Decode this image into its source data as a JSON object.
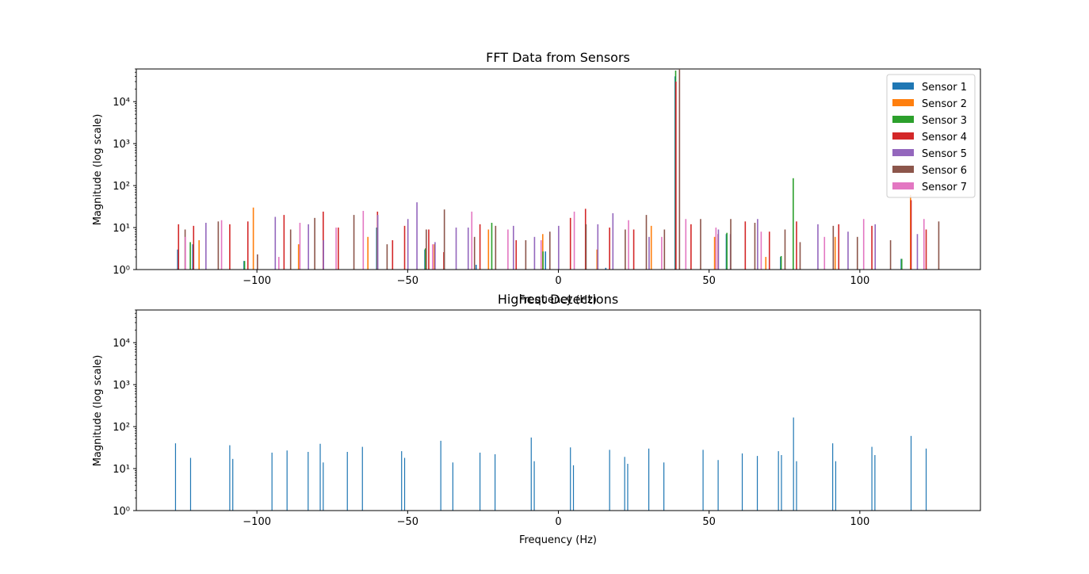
{
  "chart_data": [
    {
      "type": "bar",
      "title": "FFT Data from Sensors",
      "xlabel": "Frequency (Hz)",
      "ylabel": "Magnitude (log scale)",
      "yscale": "log",
      "xlim": [
        -140,
        140
      ],
      "ylim": [
        1,
        60000
      ],
      "x_ticks": [
        -100,
        -50,
        0,
        50,
        100
      ],
      "x_tick_labels": [
        "−100",
        "−50",
        "0",
        "50",
        "100"
      ],
      "y_ticks": [
        1,
        10,
        100,
        1000,
        10000
      ],
      "y_tick_labels": [
        "10⁰",
        "10¹",
        "10²",
        "10³",
        "10⁴"
      ],
      "grid": false,
      "legend_position": "upper right",
      "series": [
        {
          "name": "Sensor 1",
          "color": "#1f77b4",
          "x": [
            -126,
            -121,
            -104,
            -60,
            -44,
            -27,
            -4,
            16,
            39,
            56,
            74,
            114
          ],
          "values": [
            3,
            4,
            1.6,
            10,
            3,
            1.3,
            2.7,
            1.1,
            40000,
            7,
            2,
            1.8
          ]
        },
        {
          "name": "Sensor 2",
          "color": "#ff7f0e",
          "x": [
            -119,
            -101,
            -86,
            -63,
            -41,
            -23,
            -5,
            13,
            31,
            52,
            69,
            92,
            117
          ],
          "values": [
            5,
            30,
            4,
            6,
            4,
            9,
            7,
            3,
            11,
            6,
            2,
            6,
            60
          ]
        },
        {
          "name": "Sensor 3",
          "color": "#2ca02c",
          "x": [
            -122,
            -104,
            -60,
            -44,
            -22,
            -5,
            39,
            56,
            74,
            78,
            114
          ],
          "values": [
            4.5,
            1.6,
            10,
            3.2,
            13,
            2.7,
            55000,
            7.5,
            2.1,
            150,
            1.8
          ]
        },
        {
          "name": "Sensor 4",
          "color": "#d32728",
          "x": [
            -126,
            -121,
            -109,
            -103,
            -91,
            -78,
            -73,
            -60,
            -55,
            -51,
            -43,
            -38,
            -26,
            -14,
            4,
            9,
            17,
            25,
            39,
            44,
            53,
            62,
            70,
            79,
            93,
            104,
            117,
            122
          ],
          "values": [
            12,
            11,
            12,
            14,
            20,
            24,
            10,
            24,
            5,
            11,
            9,
            2.6,
            12,
            5,
            17,
            28,
            10,
            9,
            30000,
            12,
            7,
            14,
            8,
            14,
            12,
            11,
            45,
            9
          ]
        },
        {
          "name": "Sensor 5",
          "color": "#9467bd",
          "x": [
            -117,
            -94,
            -83,
            -78,
            -60,
            -50,
            -47,
            -41,
            -34,
            -30,
            -15,
            -8,
            0,
            13,
            18,
            30,
            53,
            57,
            66,
            86,
            96,
            105,
            119
          ],
          "values": [
            13,
            18,
            12,
            5,
            20,
            16,
            40,
            4.5,
            10,
            10,
            11,
            6,
            11,
            12,
            22,
            6,
            9,
            7,
            16,
            12,
            8,
            12,
            7
          ]
        },
        {
          "name": "Sensor 6",
          "color": "#8c564b",
          "x": [
            -124,
            -113,
            -100,
            -89,
            -81,
            -68,
            -57,
            -44,
            -38,
            -28,
            -21,
            -11,
            -3,
            9,
            22,
            29,
            35,
            40,
            47,
            57,
            65,
            75,
            80,
            91,
            99,
            110,
            126
          ],
          "values": [
            9,
            14,
            2.3,
            9,
            17,
            20,
            4,
            9,
            27,
            6,
            11,
            5,
            8,
            12,
            9,
            20,
            9,
            58000,
            16,
            16,
            13,
            9,
            4.5,
            11,
            6,
            5,
            14
          ]
        },
        {
          "name": "Sensor 7",
          "color": "#e377c2",
          "x": [
            -124,
            -112,
            -93,
            -86,
            -74,
            -65,
            -42,
            -29,
            -17,
            -6,
            5,
            23,
            34,
            42,
            52,
            67,
            88,
            101,
            121
          ],
          "values": [
            6,
            15,
            2,
            13,
            10,
            25,
            4,
            24,
            9,
            5,
            24,
            15,
            6,
            16,
            10,
            8,
            6,
            16,
            16
          ]
        }
      ]
    },
    {
      "type": "bar",
      "title": "Highest Detections",
      "xlabel": "Frequency (Hz)",
      "ylabel": "Magnitude (log scale)",
      "yscale": "log",
      "xlim": [
        -140,
        140
      ],
      "ylim": [
        1,
        60000
      ],
      "x_ticks": [
        -100,
        -50,
        0,
        50,
        100
      ],
      "x_tick_labels": [
        "−100",
        "−50",
        "0",
        "50",
        "100"
      ],
      "y_ticks": [
        1,
        10,
        100,
        1000,
        10000
      ],
      "y_tick_labels": [
        "10⁰",
        "10¹",
        "10²",
        "10³",
        "10⁴"
      ],
      "grid": false,
      "series": [
        {
          "color": "#1f77b4",
          "x": [
            -127,
            -122,
            -109,
            -108,
            -95,
            -90,
            -83,
            -79,
            -78,
            -70,
            -65,
            -52,
            -51,
            -39,
            -35,
            -26,
            -21,
            -9,
            -8,
            4,
            5,
            17,
            22,
            23,
            30,
            35,
            48,
            53,
            61,
            66,
            73,
            74,
            78,
            79,
            91,
            92,
            104,
            105,
            117,
            122
          ],
          "values": [
            40,
            18,
            36,
            17,
            24,
            27,
            25,
            39,
            14,
            25,
            33,
            26,
            18,
            46,
            14,
            24,
            22,
            55,
            15,
            32,
            12,
            28,
            19,
            13,
            30,
            14,
            28,
            16,
            23,
            20,
            26,
            21,
            165,
            15,
            40,
            15,
            33,
            21,
            60,
            30
          ]
        }
      ]
    }
  ]
}
